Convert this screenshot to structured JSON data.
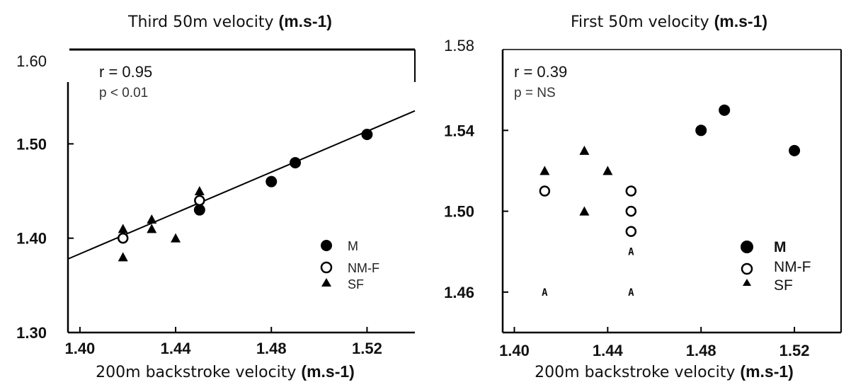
{
  "chart_data": [
    {
      "type": "scatter",
      "title": "Third 50m velocity (m.s-1)",
      "title_plain": "Third 50m velocity ",
      "title_bold": "(m.s-1)",
      "xlabel": "200m backstroke velocity (m.s-1)",
      "xlabel_plain": "200m backstroke velocity ",
      "xlabel_bold": "(m.s-1)",
      "xlim": [
        1.395,
        1.54
      ],
      "ylim": [
        1.3,
        1.6
      ],
      "x_ticks": [
        1.4,
        1.44,
        1.48,
        1.52
      ],
      "x_tick_labels": [
        "1.40",
        "1.44",
        "1.48",
        "1.52"
      ],
      "y_ticks": [
        1.6,
        1.5,
        1.4,
        1.3
      ],
      "y_tick_labels": [
        "1.60",
        "1.50",
        "1.40",
        "1.30"
      ],
      "annotations": [
        "r = 0.95",
        "p < 0.01"
      ],
      "trendline": {
        "x": [
          1.395,
          1.54
        ],
        "y": [
          1.378,
          1.535
        ]
      },
      "legend_position": "bottom-right",
      "series": [
        {
          "name": "M",
          "marker": "filled-circle",
          "points": [
            [
              1.45,
              1.43
            ],
            [
              1.48,
              1.46
            ],
            [
              1.49,
              1.48
            ],
            [
              1.52,
              1.51
            ]
          ]
        },
        {
          "name": "NM-F",
          "marker": "open-circle",
          "points": [
            [
              1.418,
              1.4
            ],
            [
              1.45,
              1.44
            ]
          ]
        },
        {
          "name": "SF",
          "marker": "filled-triangle",
          "points": [
            [
              1.418,
              1.41
            ],
            [
              1.418,
              1.38
            ],
            [
              1.43,
              1.42
            ],
            [
              1.43,
              1.41
            ],
            [
              1.44,
              1.4
            ],
            [
              1.45,
              1.45
            ]
          ]
        }
      ]
    },
    {
      "type": "scatter",
      "title": "First 50m velocity (m.s-1)",
      "title_plain": "First 50m velocity ",
      "title_bold": "(m.s-1)",
      "xlabel": "200m backstroke velocity (m.s-1)",
      "xlabel_plain": "200m backstroke velocity ",
      "xlabel_bold": "(m.s-1)",
      "xlim": [
        1.395,
        1.54
      ],
      "ylim": [
        1.44,
        1.58
      ],
      "x_ticks": [
        1.4,
        1.44,
        1.48,
        1.52
      ],
      "x_tick_labels": [
        "1.40",
        "1.44",
        "1.48",
        "1.52"
      ],
      "y_ticks": [
        1.58,
        1.54,
        1.5,
        1.46
      ],
      "y_tick_labels": [
        "1.58",
        "1.54",
        "1.50",
        "1.46"
      ],
      "annotations": [
        "r = 0.39",
        "p = NS"
      ],
      "a_marks": [
        {
          "x": 1.45,
          "y": 1.48,
          "label": "A"
        },
        {
          "x": 1.413,
          "y": 1.46,
          "label": "A"
        },
        {
          "x": 1.45,
          "y": 1.46,
          "label": "A"
        }
      ],
      "legend_position": "bottom-right",
      "series": [
        {
          "name": "M",
          "marker": "filled-circle",
          "points": [
            [
              1.48,
              1.54
            ],
            [
              1.49,
              1.55
            ],
            [
              1.52,
              1.53
            ]
          ]
        },
        {
          "name": "NM-F",
          "marker": "open-circle",
          "points": [
            [
              1.413,
              1.51
            ],
            [
              1.45,
              1.51
            ],
            [
              1.45,
              1.5
            ],
            [
              1.45,
              1.49
            ]
          ]
        },
        {
          "name": "SF",
          "marker": "filled-triangle",
          "points": [
            [
              1.413,
              1.52
            ],
            [
              1.43,
              1.53
            ],
            [
              1.43,
              1.5
            ],
            [
              1.44,
              1.52
            ]
          ]
        }
      ]
    }
  ]
}
